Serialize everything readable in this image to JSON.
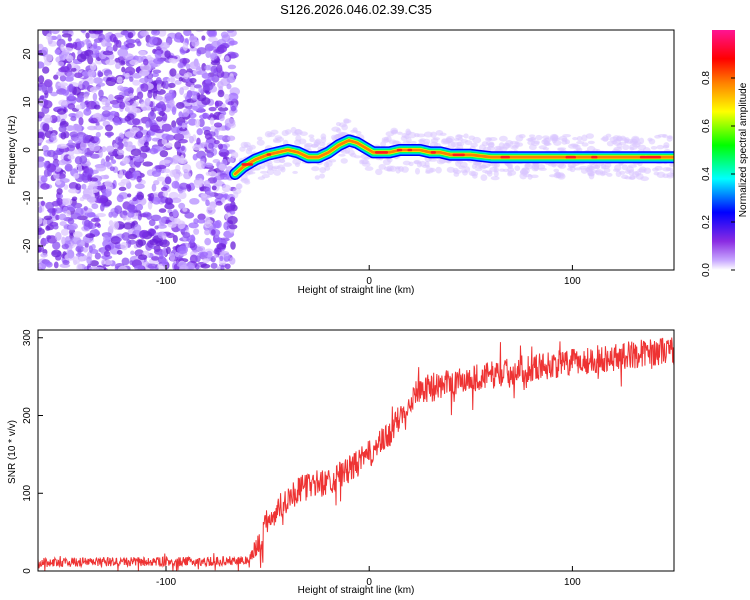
{
  "title": "S126.2026.046.02.39.C35",
  "chart_data": [
    {
      "type": "heatmap",
      "name": "spectrogram",
      "xlabel": "Height of straight line (km)",
      "ylabel": "Frequency (Hz)",
      "xlim": [
        -163,
        150
      ],
      "ylim": [
        -25,
        25
      ],
      "xticks": [
        -100,
        0,
        100
      ],
      "xtick_labels": [
        "-100",
        "0",
        "100"
      ],
      "yticks": [
        -20,
        -10,
        0,
        10,
        20
      ],
      "ytick_labels": [
        "-20",
        "-10",
        "0",
        "10",
        "20"
      ],
      "noise_region_x": [
        -163,
        -66
      ],
      "ridge": {
        "x": [
          -66,
          -62,
          -56,
          -50,
          -45,
          -40,
          -35,
          -30,
          -25,
          -20,
          -15,
          -10,
          -6,
          -2,
          2,
          6,
          10,
          15,
          20,
          25,
          30,
          35,
          40,
          45,
          50,
          60,
          70,
          80,
          90,
          100,
          110,
          120,
          130,
          140,
          150
        ],
        "y": [
          -5,
          -3.5,
          -2,
          -1,
          -0.5,
          0,
          -0.5,
          -1.5,
          -1.5,
          -0.5,
          1,
          2,
          1.5,
          0.5,
          -0.5,
          -0.5,
          -0.5,
          0,
          0,
          0,
          -0.5,
          -0.5,
          -1,
          -1,
          -1,
          -1.5,
          -1.5,
          -1.5,
          -1.5,
          -1.5,
          -1.5,
          -1.5,
          -1.5,
          -1.5,
          -1.5
        ]
      },
      "colorbar": {
        "label": "Normalized spectral amplitude",
        "range": [
          0,
          1
        ],
        "ticks": [
          0.0,
          0.2,
          0.4,
          0.6,
          0.8
        ],
        "tick_labels": [
          "0.0",
          "0.2",
          "0.4",
          "0.6",
          "0.8"
        ],
        "colors": [
          "#ffffff",
          "#c8a8ff",
          "#8a2be2",
          "#0000ff",
          "#00ffff",
          "#00ff00",
          "#ffff00",
          "#ff8000",
          "#ff0000",
          "#ff1493"
        ]
      }
    },
    {
      "type": "line",
      "name": "snr",
      "xlabel": "Height of straight line (km)",
      "ylabel": "SNR (10 * v/v)",
      "xlim": [
        -163,
        150
      ],
      "ylim": [
        0,
        310
      ],
      "xticks": [
        -100,
        0,
        100
      ],
      "xtick_labels": [
        "-100",
        "0",
        "100"
      ],
      "yticks": [
        0,
        100,
        200,
        300
      ],
      "ytick_labels": [
        "0",
        "100",
        "200",
        "300"
      ],
      "color": "#ee3333",
      "trend": {
        "x": [
          -163,
          -110,
          -80,
          -60,
          -55,
          -50,
          -40,
          -30,
          -20,
          -10,
          0,
          10,
          20,
          25,
          30,
          40,
          60,
          80,
          100,
          120,
          140,
          150
        ],
        "y": [
          11,
          12,
          12,
          14,
          30,
          65,
          95,
          110,
          115,
          130,
          150,
          175,
          220,
          235,
          235,
          242,
          252,
          262,
          268,
          275,
          282,
          285
        ]
      },
      "noise_amplitude": [
        {
          "x_from": -163,
          "x_to": -58,
          "amp": 6
        },
        {
          "x_from": -58,
          "x_to": 150,
          "amp": 18
        }
      ]
    }
  ]
}
